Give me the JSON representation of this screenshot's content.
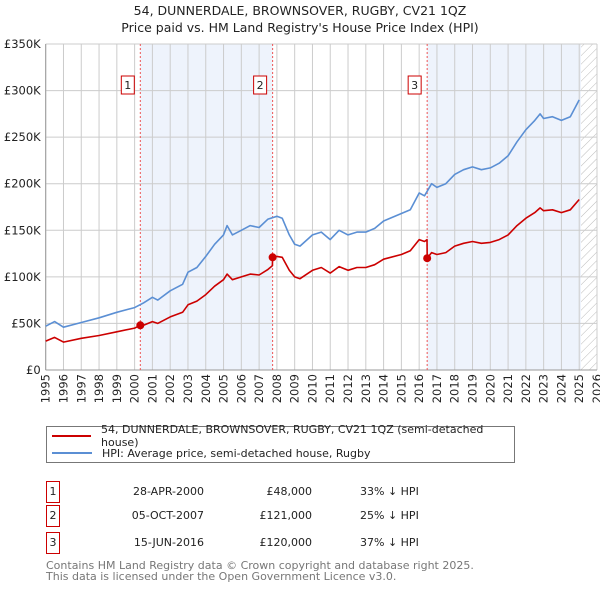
{
  "title": "54, DUNNERDALE, BROWNSOVER, RUGBY, CV21 1QZ",
  "subtitle": "Price paid vs. HM Land Registry's House Price Index (HPI)",
  "chart_data": {
    "type": "line",
    "xlim": [
      1995,
      2026
    ],
    "ylim": [
      0,
      350000
    ],
    "yticks": [
      0,
      50000,
      100000,
      150000,
      200000,
      250000,
      300000,
      350000
    ],
    "ytick_labels": [
      "£0",
      "£50K",
      "£100K",
      "£150K",
      "£200K",
      "£250K",
      "£300K",
      "£350K"
    ],
    "xtick_labels": [
      "1995",
      "1996",
      "1997",
      "1998",
      "1999",
      "2000",
      "2001",
      "2002",
      "2003",
      "2004",
      "2005",
      "2006",
      "2007",
      "2008",
      "2009",
      "2010",
      "2011",
      "2012",
      "2013",
      "2014",
      "2015",
      "2016",
      "2017",
      "2018",
      "2019",
      "2020",
      "2021",
      "2022",
      "2023",
      "2024",
      "2025",
      "2026"
    ],
    "grid": true,
    "forecast_hatch_from": 2025.1,
    "colors": {
      "property": "#cc0000",
      "hpi": "#5b8fd4",
      "shade": "#eef3fc"
    },
    "series": [
      {
        "name": "54, DUNNERDALE, BROWNSOVER, RUGBY, CV21 1QZ (semi-detached house)",
        "x": [
          1995,
          1995.5,
          1996,
          1997,
          1998,
          1999,
          2000,
          2000.32,
          2000.5,
          2001,
          2001.3,
          2002,
          2002.7,
          2003,
          2003.5,
          2004,
          2004.5,
          2005,
          2005.2,
          2005.5,
          2006,
          2006.5,
          2007,
          2007.5,
          2007.75,
          2007.76,
          2008,
          2008.3,
          2008.7,
          2009,
          2009.3,
          2010,
          2010.5,
          2011,
          2011.5,
          2012,
          2012.5,
          2013,
          2013.5,
          2014,
          2015,
          2015.5,
          2016,
          2016.3,
          2016.44,
          2016.45,
          2016.7,
          2017,
          2017.5,
          2018,
          2018.5,
          2019,
          2019.5,
          2020,
          2020.5,
          2021,
          2021.5,
          2022,
          2022.5,
          2022.8,
          2023,
          2023.5,
          2024,
          2024.5,
          2025
        ],
        "y": [
          31000,
          35000,
          30000,
          34000,
          37000,
          41000,
          45000,
          48000,
          48000,
          52000,
          50000,
          57000,
          62000,
          70000,
          74000,
          81000,
          90000,
          97000,
          103000,
          97000,
          100000,
          103000,
          102000,
          108000,
          112000,
          121000,
          122000,
          121000,
          107000,
          100000,
          98000,
          107000,
          110000,
          104000,
          111000,
          107000,
          110000,
          110000,
          113000,
          119000,
          124000,
          128000,
          140000,
          138000,
          140000,
          120000,
          126000,
          124000,
          126000,
          133000,
          136000,
          138000,
          136000,
          137000,
          140000,
          145000,
          155000,
          163000,
          169000,
          174000,
          171000,
          172000,
          169000,
          172000,
          183000
        ]
      },
      {
        "name": "HPI: Average price, semi-detached house, Rugby",
        "x": [
          1995,
          1995.5,
          1996,
          1997,
          1998,
          1999,
          2000,
          2000.5,
          2001,
          2001.3,
          2002,
          2002.7,
          2003,
          2003.5,
          2004,
          2004.5,
          2005,
          2005.2,
          2005.5,
          2006,
          2006.5,
          2007,
          2007.5,
          2008,
          2008.3,
          2008.7,
          2009,
          2009.3,
          2010,
          2010.5,
          2011,
          2011.5,
          2012,
          2012.5,
          2013,
          2013.5,
          2014,
          2015,
          2015.5,
          2016,
          2016.3,
          2016.7,
          2017,
          2017.5,
          2018,
          2018.5,
          2019,
          2019.5,
          2020,
          2020.5,
          2021,
          2021.5,
          2022,
          2022.5,
          2022.8,
          2023,
          2023.5,
          2024,
          2024.5,
          2025
        ],
        "y": [
          47000,
          52000,
          46000,
          51000,
          56000,
          62000,
          67000,
          72000,
          78000,
          75000,
          85000,
          92000,
          105000,
          110000,
          122000,
          135000,
          145000,
          155000,
          145000,
          150000,
          155000,
          153000,
          162000,
          165000,
          163000,
          145000,
          135000,
          133000,
          145000,
          148000,
          140000,
          150000,
          145000,
          148000,
          148000,
          152000,
          160000,
          168000,
          172000,
          190000,
          187000,
          200000,
          196000,
          200000,
          210000,
          215000,
          218000,
          215000,
          217000,
          222000,
          230000,
          245000,
          258000,
          268000,
          275000,
          270000,
          272000,
          268000,
          272000,
          290000
        ]
      }
    ],
    "legend_position": "bottom"
  },
  "sales": [
    {
      "num": "1",
      "x": 2000.32,
      "price_value": 48000,
      "date": "28-APR-2000",
      "price": "£48,000",
      "hpi": "33% ↓ HPI"
    },
    {
      "num": "2",
      "x": 2007.76,
      "price_value": 121000,
      "date": "05-OCT-2007",
      "price": "£121,000",
      "hpi": "25% ↓ HPI"
    },
    {
      "num": "3",
      "x": 2016.45,
      "price_value": 120000,
      "date": "15-JUN-2016",
      "price": "£120,000",
      "hpi": "37% ↓ HPI"
    }
  ],
  "legend": {
    "property": "54, DUNNERDALE, BROWNSOVER, RUGBY, CV21 1QZ (semi-detached house)",
    "hpi": "HPI: Average price, semi-detached house, Rugby"
  },
  "footer": {
    "line1": "Contains HM Land Registry data © Crown copyright and database right 2025.",
    "line2": "This data is licensed under the Open Government Licence v3.0."
  }
}
